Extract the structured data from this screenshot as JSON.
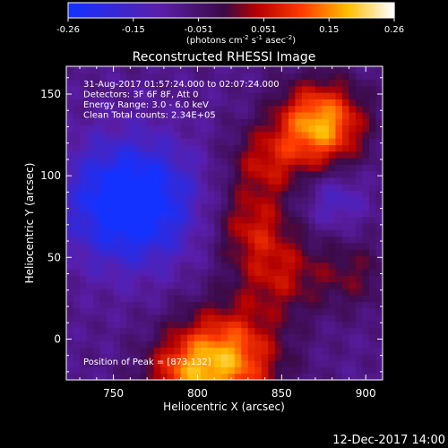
{
  "chart_data": {
    "type": "heatmap",
    "title": "Reconstructed RHESSI Image",
    "xlabel": "Heliocentric X (arcsec)",
    "ylabel": "Heliocentric Y (arcsec)",
    "xlim": [
      722,
      910
    ],
    "ylim": [
      -25,
      167
    ],
    "xticks": [
      750,
      800,
      850,
      900
    ],
    "yticks": [
      0,
      50,
      100,
      150
    ],
    "colorbar": {
      "ticks": [
        "-0.26",
        "-0.15",
        "-0.051",
        "0.051",
        "0.15",
        "0.26"
      ],
      "range": [
        -0.26,
        0.26
      ],
      "unit_prefix": "(photons cm",
      "unit_sup1": "-2",
      "unit_mid1": " s",
      "unit_sup2": "-1",
      "unit_mid2": " asec",
      "unit_sup3": "-2",
      "unit_suffix": ")"
    },
    "annotations": [
      "31-Aug-2017 01:57:24.000 to 02:07:24.000",
      "Detectors: 3F 6F 8F, Att 0",
      "Energy Range: 3.0 - 6.0 keV",
      "Clean     Total counts: 2.34E+05"
    ],
    "peak_label": "Position of Peak = [873,132]",
    "peak": [
      873,
      132
    ],
    "sources": [
      {
        "x": 873,
        "y": 132,
        "amp": 0.26,
        "sigma": 18
      },
      {
        "x": 817,
        "y": -12,
        "amp": 0.24,
        "sigma": 22
      },
      {
        "x": 790,
        "y": -22,
        "amp": 0.12,
        "sigma": 16
      },
      {
        "x": 832,
        "y": 70,
        "amp": 0.12,
        "sigma": 16
      },
      {
        "x": 848,
        "y": 40,
        "amp": 0.12,
        "sigma": 18
      },
      {
        "x": 840,
        "y": 108,
        "amp": 0.12,
        "sigma": 16
      },
      {
        "x": 892,
        "y": 40,
        "amp": 0.08,
        "sigma": 16
      },
      {
        "x": 760,
        "y": 84,
        "amp": -0.24,
        "sigma": 26
      },
      {
        "x": 882,
        "y": 85,
        "amp": -0.08,
        "sigma": 12
      }
    ],
    "background": -0.08
  },
  "footer": {
    "date": "12-Dec-2017 14:00"
  }
}
